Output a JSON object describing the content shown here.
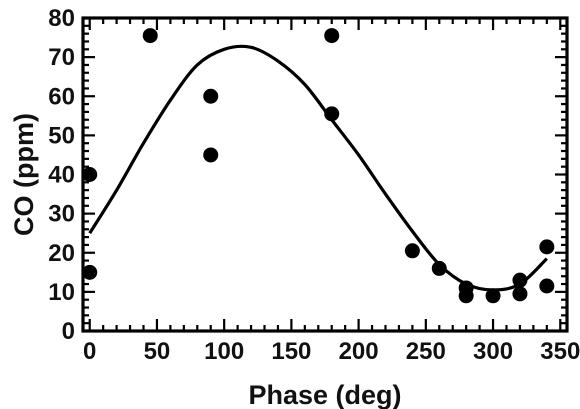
{
  "chart_data": {
    "type": "scatter",
    "title": "",
    "xlabel": "Phase (deg)",
    "ylabel": "CO (ppm)",
    "xlim": [
      -5,
      355
    ],
    "ylim": [
      0,
      80
    ],
    "xticks": [
      0,
      50,
      100,
      150,
      200,
      250,
      300,
      350
    ],
    "yticks": [
      0,
      10,
      20,
      30,
      40,
      50,
      60,
      70,
      80
    ],
    "grid": false,
    "legend": "none",
    "series": [
      {
        "kind": "scatter",
        "marker": "filled-circle",
        "color": "#000000",
        "points": [
          [
            0,
            40
          ],
          [
            0,
            15
          ],
          [
            45,
            75.5
          ],
          [
            90,
            60
          ],
          [
            90,
            45
          ],
          [
            180,
            75.5
          ],
          [
            180,
            55.5
          ],
          [
            240,
            20.5
          ],
          [
            260,
            16
          ],
          [
            280,
            11
          ],
          [
            280,
            9
          ],
          [
            300,
            9
          ],
          [
            320,
            13
          ],
          [
            320,
            9.5
          ],
          [
            340,
            21.5
          ],
          [
            340,
            11.5
          ]
        ]
      },
      {
        "kind": "fit-curve",
        "color": "#000000",
        "x": [
          0,
          20,
          40,
          60,
          80,
          100,
          120,
          140,
          160,
          180,
          200,
          220,
          240,
          260,
          280,
          300,
          320,
          340
        ],
        "y": [
          25,
          36,
          48,
          59,
          68,
          72,
          72.5,
          69,
          63,
          54,
          45,
          35,
          25.5,
          17,
          12,
          10.5,
          12,
          18.5
        ]
      }
    ]
  }
}
